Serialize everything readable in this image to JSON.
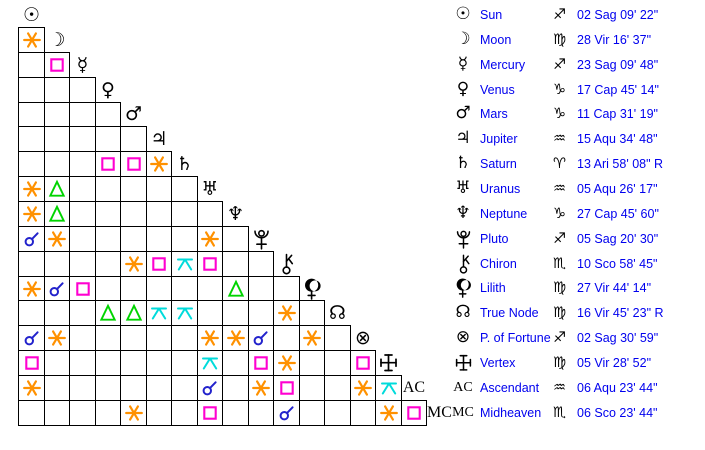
{
  "chart_data": {
    "type": "table",
    "title": "Astrological aspect grid with planet positions",
    "legend_text_color": "#0000ee",
    "aspect_types": {
      "conjunction": {
        "color": "#2222cc",
        "icon": "conjunction-icon"
      },
      "sextile": {
        "color": "#ff9100",
        "icon": "sextile-icon"
      },
      "square": {
        "color": "#ff00d0",
        "icon": "square-icon"
      },
      "trine": {
        "color": "#00d400",
        "icon": "trine-icon"
      },
      "quincunx": {
        "color": "#00dbdb",
        "icon": "quincunx-icon"
      }
    },
    "planets": [
      {
        "name": "Sun",
        "glyph": "☉",
        "sign": "Sag",
        "position": "02 Sag 09' 22\""
      },
      {
        "name": "Moon",
        "glyph": "☽",
        "sign": "Vir",
        "position": "28 Vir 16' 37\""
      },
      {
        "name": "Mercury",
        "glyph": "☿",
        "sign": "Sag",
        "position": "23 Sag 09' 48\""
      },
      {
        "name": "Venus",
        "glyph": "♀",
        "sign": "Cap",
        "position": "17 Cap 45' 14\""
      },
      {
        "name": "Mars",
        "glyph": "♂",
        "sign": "Cap",
        "position": "11 Cap 31' 19\""
      },
      {
        "name": "Jupiter",
        "glyph": "♃",
        "sign": "Aqu",
        "position": "15 Aqu 34' 48\""
      },
      {
        "name": "Saturn",
        "glyph": "♄",
        "sign": "Ari",
        "position": "13 Ari 58' 08\" R"
      },
      {
        "name": "Uranus",
        "glyph": "♅",
        "sign": "Aqu",
        "position": "05 Aqu 26' 17\""
      },
      {
        "name": "Neptune",
        "glyph": "♆",
        "sign": "Cap",
        "position": "27 Cap 45' 60\""
      },
      {
        "name": "Pluto",
        "glyph": "#pluto",
        "sign": "Sag",
        "position": "05 Sag 20' 30\""
      },
      {
        "name": "Chiron",
        "glyph": "#chiron",
        "sign": "Sco",
        "position": "10 Sco 58' 45\""
      },
      {
        "name": "Lilith",
        "glyph": "#lilith",
        "sign": "Vir",
        "position": "27 Vir 44' 14\""
      },
      {
        "name": "True Node",
        "glyph": "☊",
        "sign": "Vir",
        "position": "16 Vir 45' 23\" R"
      },
      {
        "name": "P. of Fortune",
        "glyph": "⊗",
        "sign": "Sag",
        "position": "02 Sag 30' 59\""
      },
      {
        "name": "Vertex",
        "glyph": "#vertex",
        "sign": "Vir",
        "position": "05 Vir 28' 52\""
      },
      {
        "name": "Ascendant",
        "glyph": "AC",
        "sign": "Aqu",
        "position": "06 Aqu 23' 44\""
      },
      {
        "name": "Midheaven",
        "glyph": "MC",
        "sign": "Sco",
        "position": "06 Sco 23' 44\""
      }
    ],
    "sign_glyphs": {
      "Sag": "♐",
      "Vir": "♍",
      "Cap": "♑",
      "Aqu": "♒",
      "Ari": "♈",
      "Sco": "♏"
    },
    "aspects": [
      {
        "row": 1,
        "col": 0,
        "type": "sextile"
      },
      {
        "row": 2,
        "col": 1,
        "type": "square"
      },
      {
        "row": 6,
        "col": 3,
        "type": "square"
      },
      {
        "row": 6,
        "col": 4,
        "type": "square"
      },
      {
        "row": 6,
        "col": 5,
        "type": "sextile"
      },
      {
        "row": 7,
        "col": 0,
        "type": "sextile"
      },
      {
        "row": 7,
        "col": 1,
        "type": "trine"
      },
      {
        "row": 8,
        "col": 0,
        "type": "sextile"
      },
      {
        "row": 8,
        "col": 1,
        "type": "trine"
      },
      {
        "row": 9,
        "col": 0,
        "type": "conjunction"
      },
      {
        "row": 9,
        "col": 1,
        "type": "sextile"
      },
      {
        "row": 9,
        "col": 7,
        "type": "sextile"
      },
      {
        "row": 10,
        "col": 4,
        "type": "sextile"
      },
      {
        "row": 10,
        "col": 5,
        "type": "square"
      },
      {
        "row": 10,
        "col": 6,
        "type": "quincunx"
      },
      {
        "row": 10,
        "col": 7,
        "type": "square"
      },
      {
        "row": 11,
        "col": 0,
        "type": "sextile"
      },
      {
        "row": 11,
        "col": 1,
        "type": "conjunction"
      },
      {
        "row": 11,
        "col": 2,
        "type": "square"
      },
      {
        "row": 11,
        "col": 8,
        "type": "trine"
      },
      {
        "row": 12,
        "col": 3,
        "type": "trine"
      },
      {
        "row": 12,
        "col": 4,
        "type": "trine"
      },
      {
        "row": 12,
        "col": 5,
        "type": "quincunx"
      },
      {
        "row": 12,
        "col": 6,
        "type": "quincunx"
      },
      {
        "row": 12,
        "col": 10,
        "type": "sextile"
      },
      {
        "row": 13,
        "col": 0,
        "type": "conjunction"
      },
      {
        "row": 13,
        "col": 1,
        "type": "sextile"
      },
      {
        "row": 13,
        "col": 7,
        "type": "sextile"
      },
      {
        "row": 13,
        "col": 8,
        "type": "sextile"
      },
      {
        "row": 13,
        "col": 9,
        "type": "conjunction"
      },
      {
        "row": 13,
        "col": 11,
        "type": "sextile"
      },
      {
        "row": 14,
        "col": 0,
        "type": "square"
      },
      {
        "row": 14,
        "col": 7,
        "type": "quincunx"
      },
      {
        "row": 14,
        "col": 9,
        "type": "square"
      },
      {
        "row": 14,
        "col": 10,
        "type": "sextile"
      },
      {
        "row": 14,
        "col": 13,
        "type": "square"
      },
      {
        "row": 15,
        "col": 0,
        "type": "sextile"
      },
      {
        "row": 15,
        "col": 7,
        "type": "conjunction"
      },
      {
        "row": 15,
        "col": 9,
        "type": "sextile"
      },
      {
        "row": 15,
        "col": 10,
        "type": "square"
      },
      {
        "row": 15,
        "col": 13,
        "type": "sextile"
      },
      {
        "row": 15,
        "col": 14,
        "type": "quincunx"
      }
    ],
    "aspects_last_row": [
      {
        "row": 16,
        "col": 4,
        "type": "sextile"
      },
      {
        "row": 16,
        "col": 7,
        "type": "square"
      },
      {
        "row": 16,
        "col": 10,
        "type": "conjunction"
      },
      {
        "row": 16,
        "col": 14,
        "type": "sextile"
      },
      {
        "row": 16,
        "col": 15,
        "type": "square"
      }
    ]
  }
}
